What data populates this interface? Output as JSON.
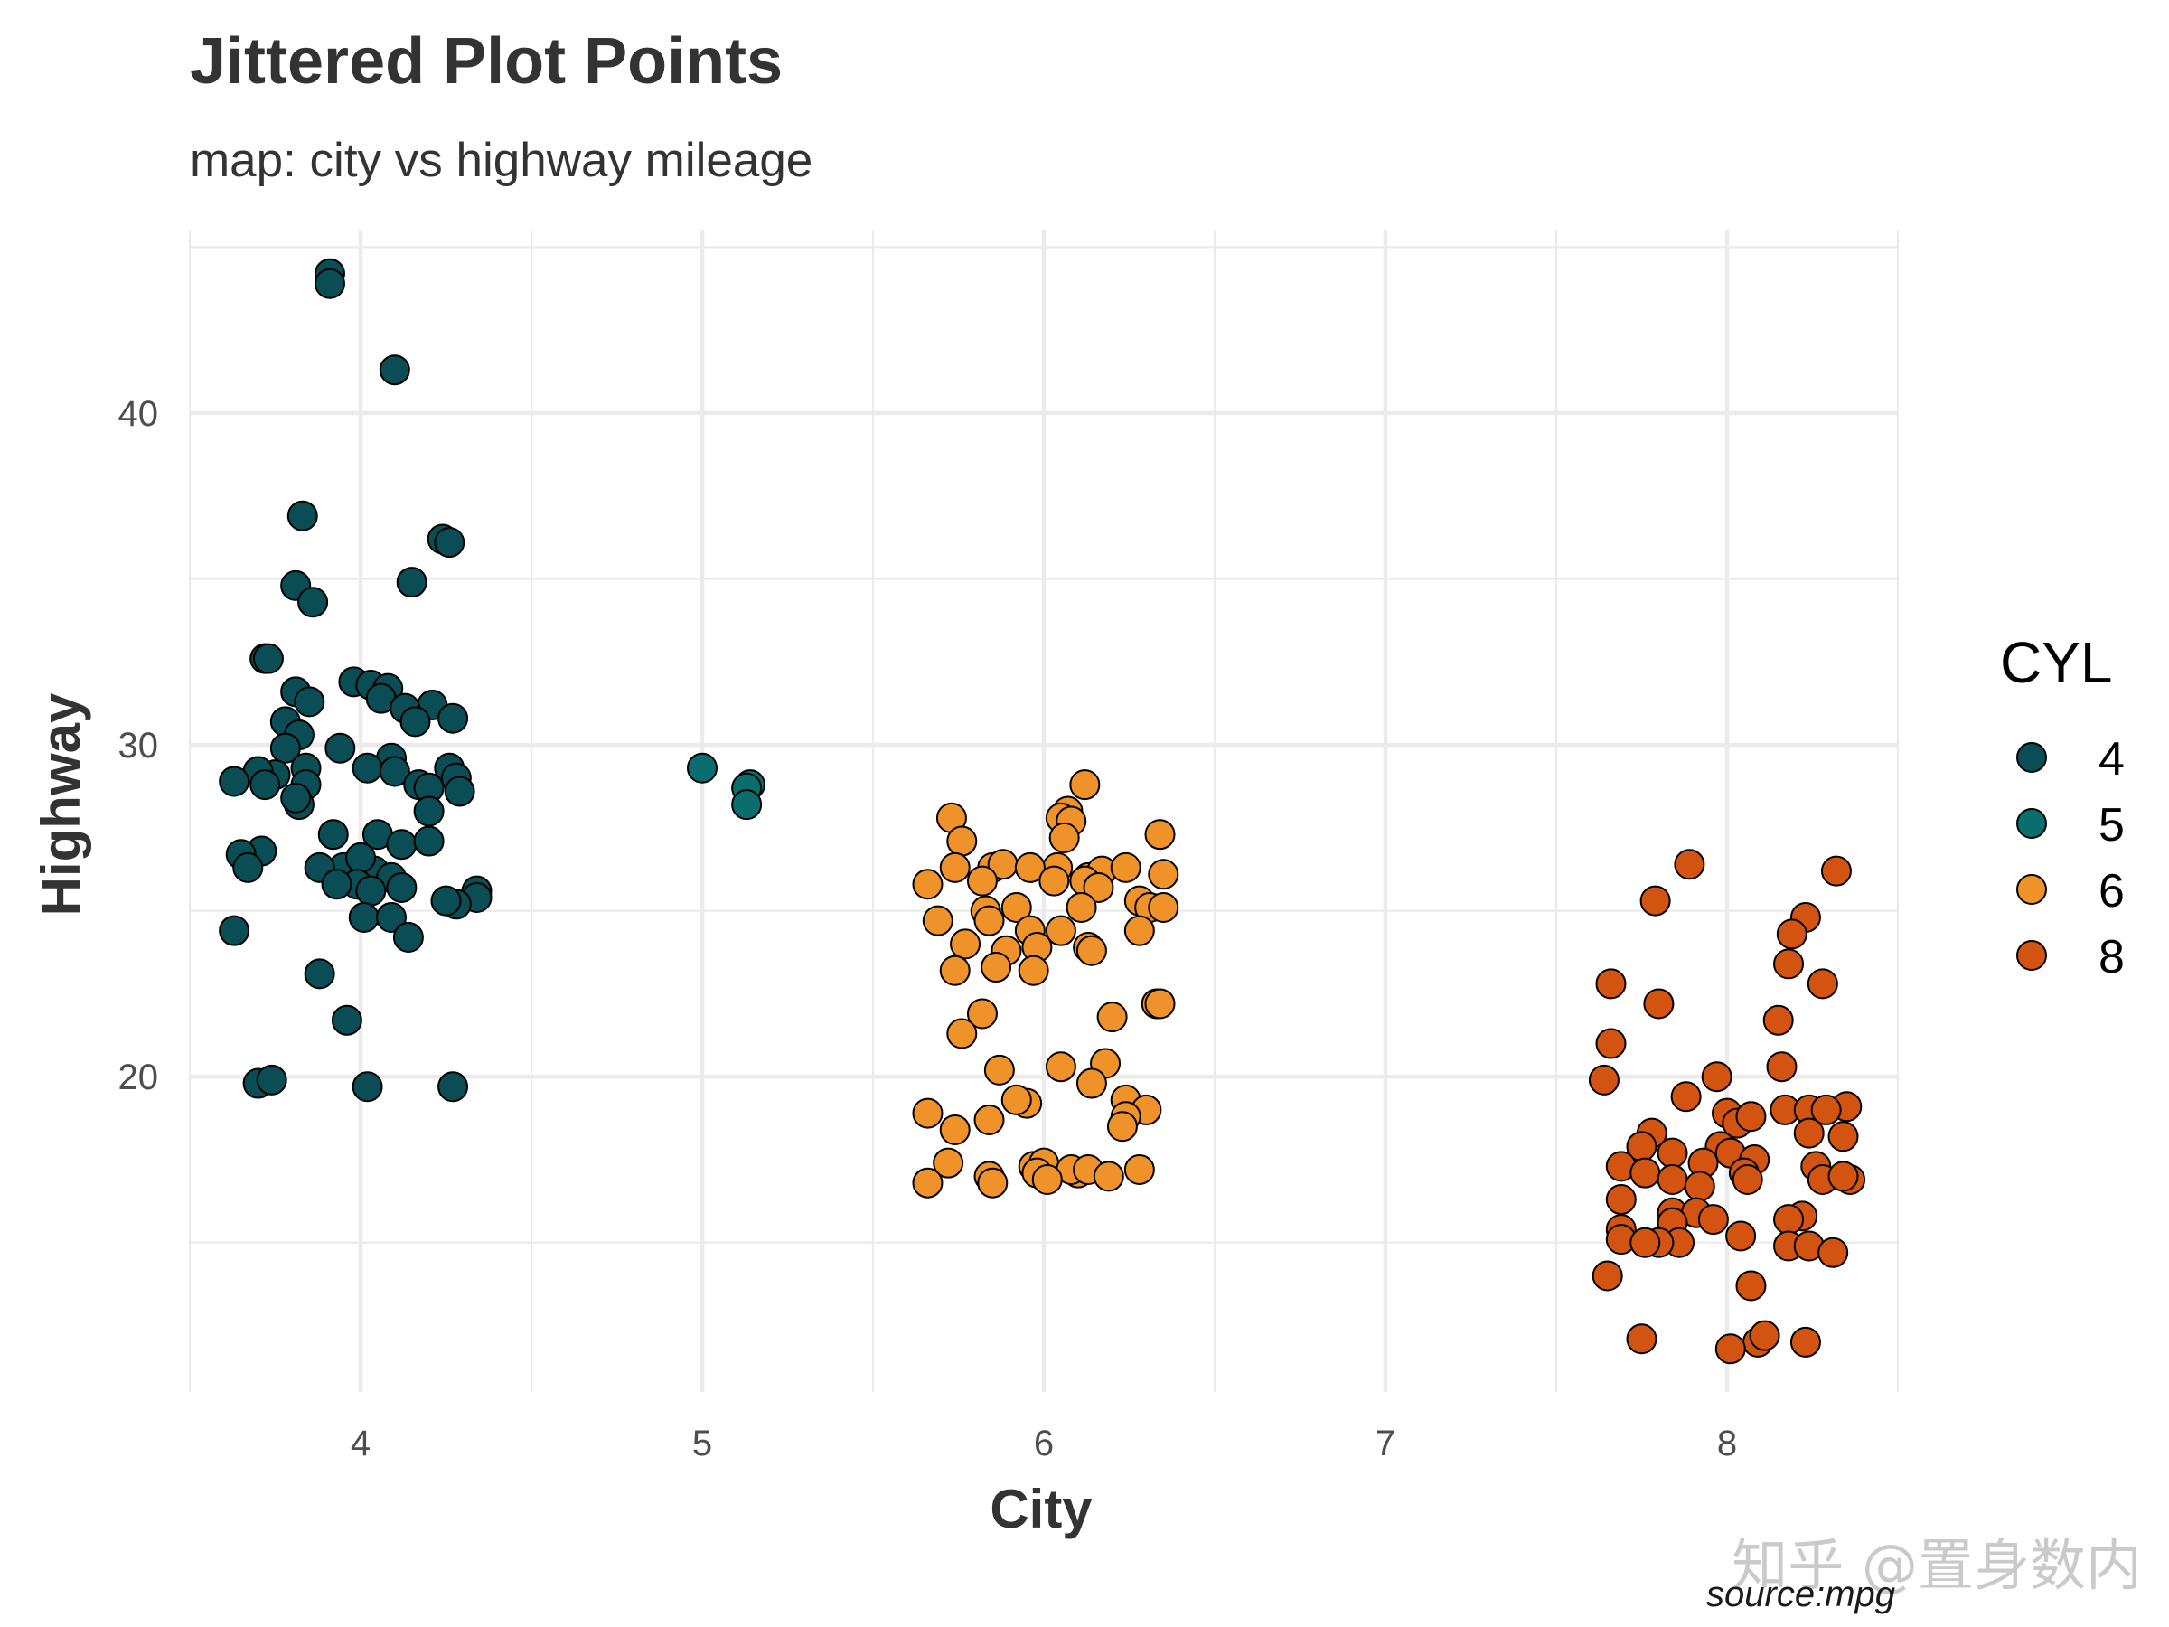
{
  "chart_data": {
    "type": "scatter",
    "title": "Jittered Plot Points",
    "subtitle": "map: city vs highway mileage",
    "xlabel": "City",
    "ylabel": "Highway",
    "caption": "source:mpg",
    "xlim": [
      3.5,
      8.5
    ],
    "ylim": [
      10.5,
      45.5
    ],
    "x_ticks": [
      4,
      5,
      6,
      7,
      8
    ],
    "y_ticks": [
      20,
      30,
      40
    ],
    "grid": true,
    "legend": {
      "title": "CYL",
      "position": "right"
    },
    "series": [
      {
        "name": "4",
        "color": "#0b4d55",
        "points": [
          [
            3.91,
            44.2
          ],
          [
            3.91,
            43.9
          ],
          [
            4.1,
            41.3
          ],
          [
            3.83,
            36.9
          ],
          [
            4.24,
            36.2
          ],
          [
            4.26,
            36.1
          ],
          [
            3.81,
            34.8
          ],
          [
            4.15,
            34.9
          ],
          [
            3.86,
            34.3
          ],
          [
            3.72,
            32.6
          ],
          [
            3.73,
            32.6
          ],
          [
            3.98,
            31.9
          ],
          [
            4.03,
            31.8
          ],
          [
            4.08,
            31.7
          ],
          [
            3.81,
            31.6
          ],
          [
            3.85,
            31.3
          ],
          [
            4.06,
            31.4
          ],
          [
            4.21,
            31.2
          ],
          [
            4.13,
            31.1
          ],
          [
            3.78,
            30.7
          ],
          [
            4.16,
            30.7
          ],
          [
            4.27,
            30.8
          ],
          [
            3.82,
            30.3
          ],
          [
            3.78,
            29.9
          ],
          [
            3.94,
            29.9
          ],
          [
            4.09,
            29.6
          ],
          [
            4.02,
            29.3
          ],
          [
            3.84,
            29.3
          ],
          [
            3.75,
            29.1
          ],
          [
            4.1,
            29.2
          ],
          [
            4.26,
            29.3
          ],
          [
            4.28,
            29.0
          ],
          [
            3.7,
            29.2
          ],
          [
            3.63,
            28.9
          ],
          [
            3.72,
            28.8
          ],
          [
            3.84,
            28.8
          ],
          [
            4.17,
            28.8
          ],
          [
            4.29,
            28.6
          ],
          [
            4.2,
            28.7
          ],
          [
            3.82,
            28.2
          ],
          [
            3.81,
            28.4
          ],
          [
            4.2,
            28.0
          ],
          [
            3.92,
            27.3
          ],
          [
            4.05,
            27.3
          ],
          [
            4.12,
            27.0
          ],
          [
            4.2,
            27.1
          ],
          [
            3.71,
            26.8
          ],
          [
            3.65,
            26.7
          ],
          [
            3.95,
            26.3
          ],
          [
            3.67,
            26.3
          ],
          [
            3.88,
            26.3
          ],
          [
            4.04,
            26.2
          ],
          [
            4.0,
            26.6
          ],
          [
            4.09,
            26.0
          ],
          [
            3.99,
            25.8
          ],
          [
            3.93,
            25.8
          ],
          [
            4.03,
            25.6
          ],
          [
            4.12,
            25.7
          ],
          [
            4.34,
            25.6
          ],
          [
            4.34,
            25.4
          ],
          [
            4.28,
            25.2
          ],
          [
            4.25,
            25.3
          ],
          [
            4.01,
            24.8
          ],
          [
            4.09,
            24.8
          ],
          [
            3.63,
            24.4
          ],
          [
            4.14,
            24.2
          ],
          [
            3.88,
            23.1
          ],
          [
            3.96,
            21.7
          ],
          [
            3.7,
            19.8
          ],
          [
            3.74,
            19.9
          ],
          [
            4.02,
            19.7
          ],
          [
            4.27,
            19.7
          ]
        ]
      },
      {
        "name": "5",
        "color": "#0a6e6e",
        "points": [
          [
            5.0,
            29.3
          ],
          [
            5.14,
            28.8
          ],
          [
            5.13,
            28.7
          ],
          [
            5.13,
            28.2
          ]
        ]
      },
      {
        "name": "6",
        "color": "#f0922a",
        "points": [
          [
            6.12,
            28.8
          ],
          [
            6.07,
            28.0
          ],
          [
            6.05,
            27.8
          ],
          [
            5.73,
            27.8
          ],
          [
            6.08,
            27.7
          ],
          [
            6.34,
            27.3
          ],
          [
            5.76,
            27.1
          ],
          [
            6.06,
            27.2
          ],
          [
            5.74,
            26.3
          ],
          [
            5.85,
            26.3
          ],
          [
            5.88,
            26.4
          ],
          [
            6.04,
            26.3
          ],
          [
            5.96,
            26.3
          ],
          [
            6.13,
            26.0
          ],
          [
            6.17,
            26.2
          ],
          [
            6.24,
            26.3
          ],
          [
            6.35,
            26.1
          ],
          [
            5.66,
            25.8
          ],
          [
            5.82,
            25.9
          ],
          [
            6.12,
            25.9
          ],
          [
            6.16,
            25.7
          ],
          [
            6.03,
            25.9
          ],
          [
            6.28,
            25.3
          ],
          [
            6.31,
            25.1
          ],
          [
            6.35,
            25.1
          ],
          [
            5.92,
            25.1
          ],
          [
            5.83,
            25.0
          ],
          [
            6.11,
            25.1
          ],
          [
            5.69,
            24.7
          ],
          [
            5.84,
            24.7
          ],
          [
            6.28,
            24.4
          ],
          [
            5.96,
            24.4
          ],
          [
            6.05,
            24.4
          ],
          [
            5.77,
            24.0
          ],
          [
            5.98,
            23.9
          ],
          [
            6.13,
            23.9
          ],
          [
            5.89,
            23.8
          ],
          [
            6.14,
            23.8
          ],
          [
            5.74,
            23.2
          ],
          [
            5.86,
            23.3
          ],
          [
            5.97,
            23.2
          ],
          [
            6.33,
            22.2
          ],
          [
            6.34,
            22.2
          ],
          [
            6.2,
            21.8
          ],
          [
            5.82,
            21.9
          ],
          [
            5.76,
            21.3
          ],
          [
            5.87,
            20.2
          ],
          [
            6.05,
            20.3
          ],
          [
            6.18,
            20.4
          ],
          [
            6.14,
            19.8
          ],
          [
            5.95,
            19.2
          ],
          [
            5.92,
            19.3
          ],
          [
            6.24,
            19.3
          ],
          [
            6.3,
            19.0
          ],
          [
            5.66,
            18.9
          ],
          [
            6.24,
            18.8
          ],
          [
            5.84,
            18.7
          ],
          [
            6.23,
            18.5
          ],
          [
            5.74,
            18.4
          ],
          [
            5.72,
            17.4
          ],
          [
            5.97,
            17.3
          ],
          [
            6.0,
            17.4
          ],
          [
            5.98,
            17.1
          ],
          [
            6.1,
            17.1
          ],
          [
            6.08,
            17.2
          ],
          [
            6.13,
            17.2
          ],
          [
            6.19,
            17.0
          ],
          [
            6.28,
            17.2
          ],
          [
            5.66,
            16.8
          ],
          [
            5.84,
            17.0
          ],
          [
            5.85,
            16.8
          ],
          [
            6.01,
            16.9
          ]
        ]
      },
      {
        "name": "8",
        "color": "#d35410",
        "points": [
          [
            7.89,
            26.4
          ],
          [
            8.32,
            26.2
          ],
          [
            7.79,
            25.3
          ],
          [
            8.23,
            24.8
          ],
          [
            8.19,
            24.3
          ],
          [
            8.18,
            23.4
          ],
          [
            7.66,
            22.8
          ],
          [
            8.28,
            22.8
          ],
          [
            7.8,
            22.2
          ],
          [
            8.15,
            21.7
          ],
          [
            7.66,
            21.0
          ],
          [
            8.16,
            20.3
          ],
          [
            7.64,
            19.9
          ],
          [
            7.97,
            20.0
          ],
          [
            7.88,
            19.4
          ],
          [
            8.17,
            19.0
          ],
          [
            8.24,
            19.0
          ],
          [
            8.35,
            19.1
          ],
          [
            8.29,
            19.0
          ],
          [
            8.0,
            18.9
          ],
          [
            8.03,
            18.6
          ],
          [
            8.07,
            18.8
          ],
          [
            8.24,
            18.3
          ],
          [
            8.34,
            18.2
          ],
          [
            7.78,
            18.3
          ],
          [
            7.75,
            17.9
          ],
          [
            7.98,
            17.9
          ],
          [
            8.01,
            17.7
          ],
          [
            7.84,
            17.7
          ],
          [
            8.08,
            17.5
          ],
          [
            7.93,
            17.4
          ],
          [
            7.69,
            17.3
          ],
          [
            8.05,
            17.1
          ],
          [
            7.76,
            17.1
          ],
          [
            7.84,
            16.9
          ],
          [
            8.26,
            17.3
          ],
          [
            8.28,
            16.9
          ],
          [
            8.36,
            16.9
          ],
          [
            8.06,
            16.9
          ],
          [
            8.34,
            17.0
          ],
          [
            7.92,
            16.7
          ],
          [
            7.69,
            16.3
          ],
          [
            7.84,
            15.9
          ],
          [
            7.91,
            15.9
          ],
          [
            7.84,
            15.6
          ],
          [
            7.96,
            15.7
          ],
          [
            7.69,
            15.4
          ],
          [
            7.86,
            15.0
          ],
          [
            8.22,
            15.8
          ],
          [
            8.18,
            15.7
          ],
          [
            8.04,
            15.2
          ],
          [
            7.69,
            15.1
          ],
          [
            7.8,
            15.0
          ],
          [
            7.76,
            15.0
          ],
          [
            8.18,
            14.9
          ],
          [
            8.24,
            14.9
          ],
          [
            8.31,
            14.7
          ],
          [
            7.65,
            14.0
          ],
          [
            8.07,
            13.7
          ],
          [
            7.75,
            12.1
          ],
          [
            8.09,
            12.0
          ],
          [
            8.11,
            12.2
          ],
          [
            8.01,
            11.8
          ],
          [
            8.23,
            12.0
          ]
        ]
      }
    ]
  },
  "watermark": "知乎 @置身数内"
}
